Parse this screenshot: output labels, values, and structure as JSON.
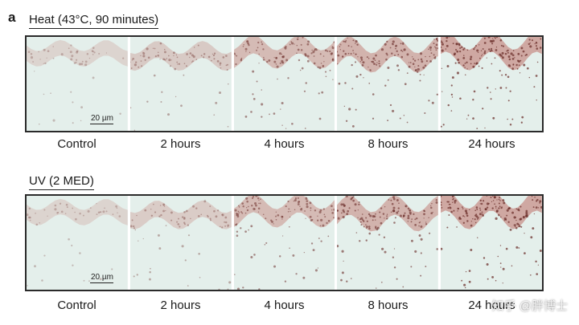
{
  "panel_letter": "a",
  "sections": [
    {
      "title": "Heat (43°C, 90 minutes)",
      "scale_bar": "20 µm",
      "labels": [
        "Control",
        "2 hours",
        "4 hours",
        "8 hours",
        "24 hours"
      ],
      "stain_intensity": [
        0.15,
        0.35,
        0.6,
        0.75,
        0.95
      ]
    },
    {
      "title": "UV (2 MED)",
      "scale_bar": "20 µm",
      "labels": [
        "Control",
        "2 hours",
        "4 hours",
        "8 hours",
        "24 hours"
      ],
      "stain_intensity": [
        0.15,
        0.3,
        0.6,
        0.75,
        0.95
      ]
    }
  ],
  "watermark": "知乎 @胖博士",
  "colors": {
    "tissue_background": "#e4efeb",
    "stain": "#b5524a",
    "nuclei": "#6b2e2a"
  }
}
